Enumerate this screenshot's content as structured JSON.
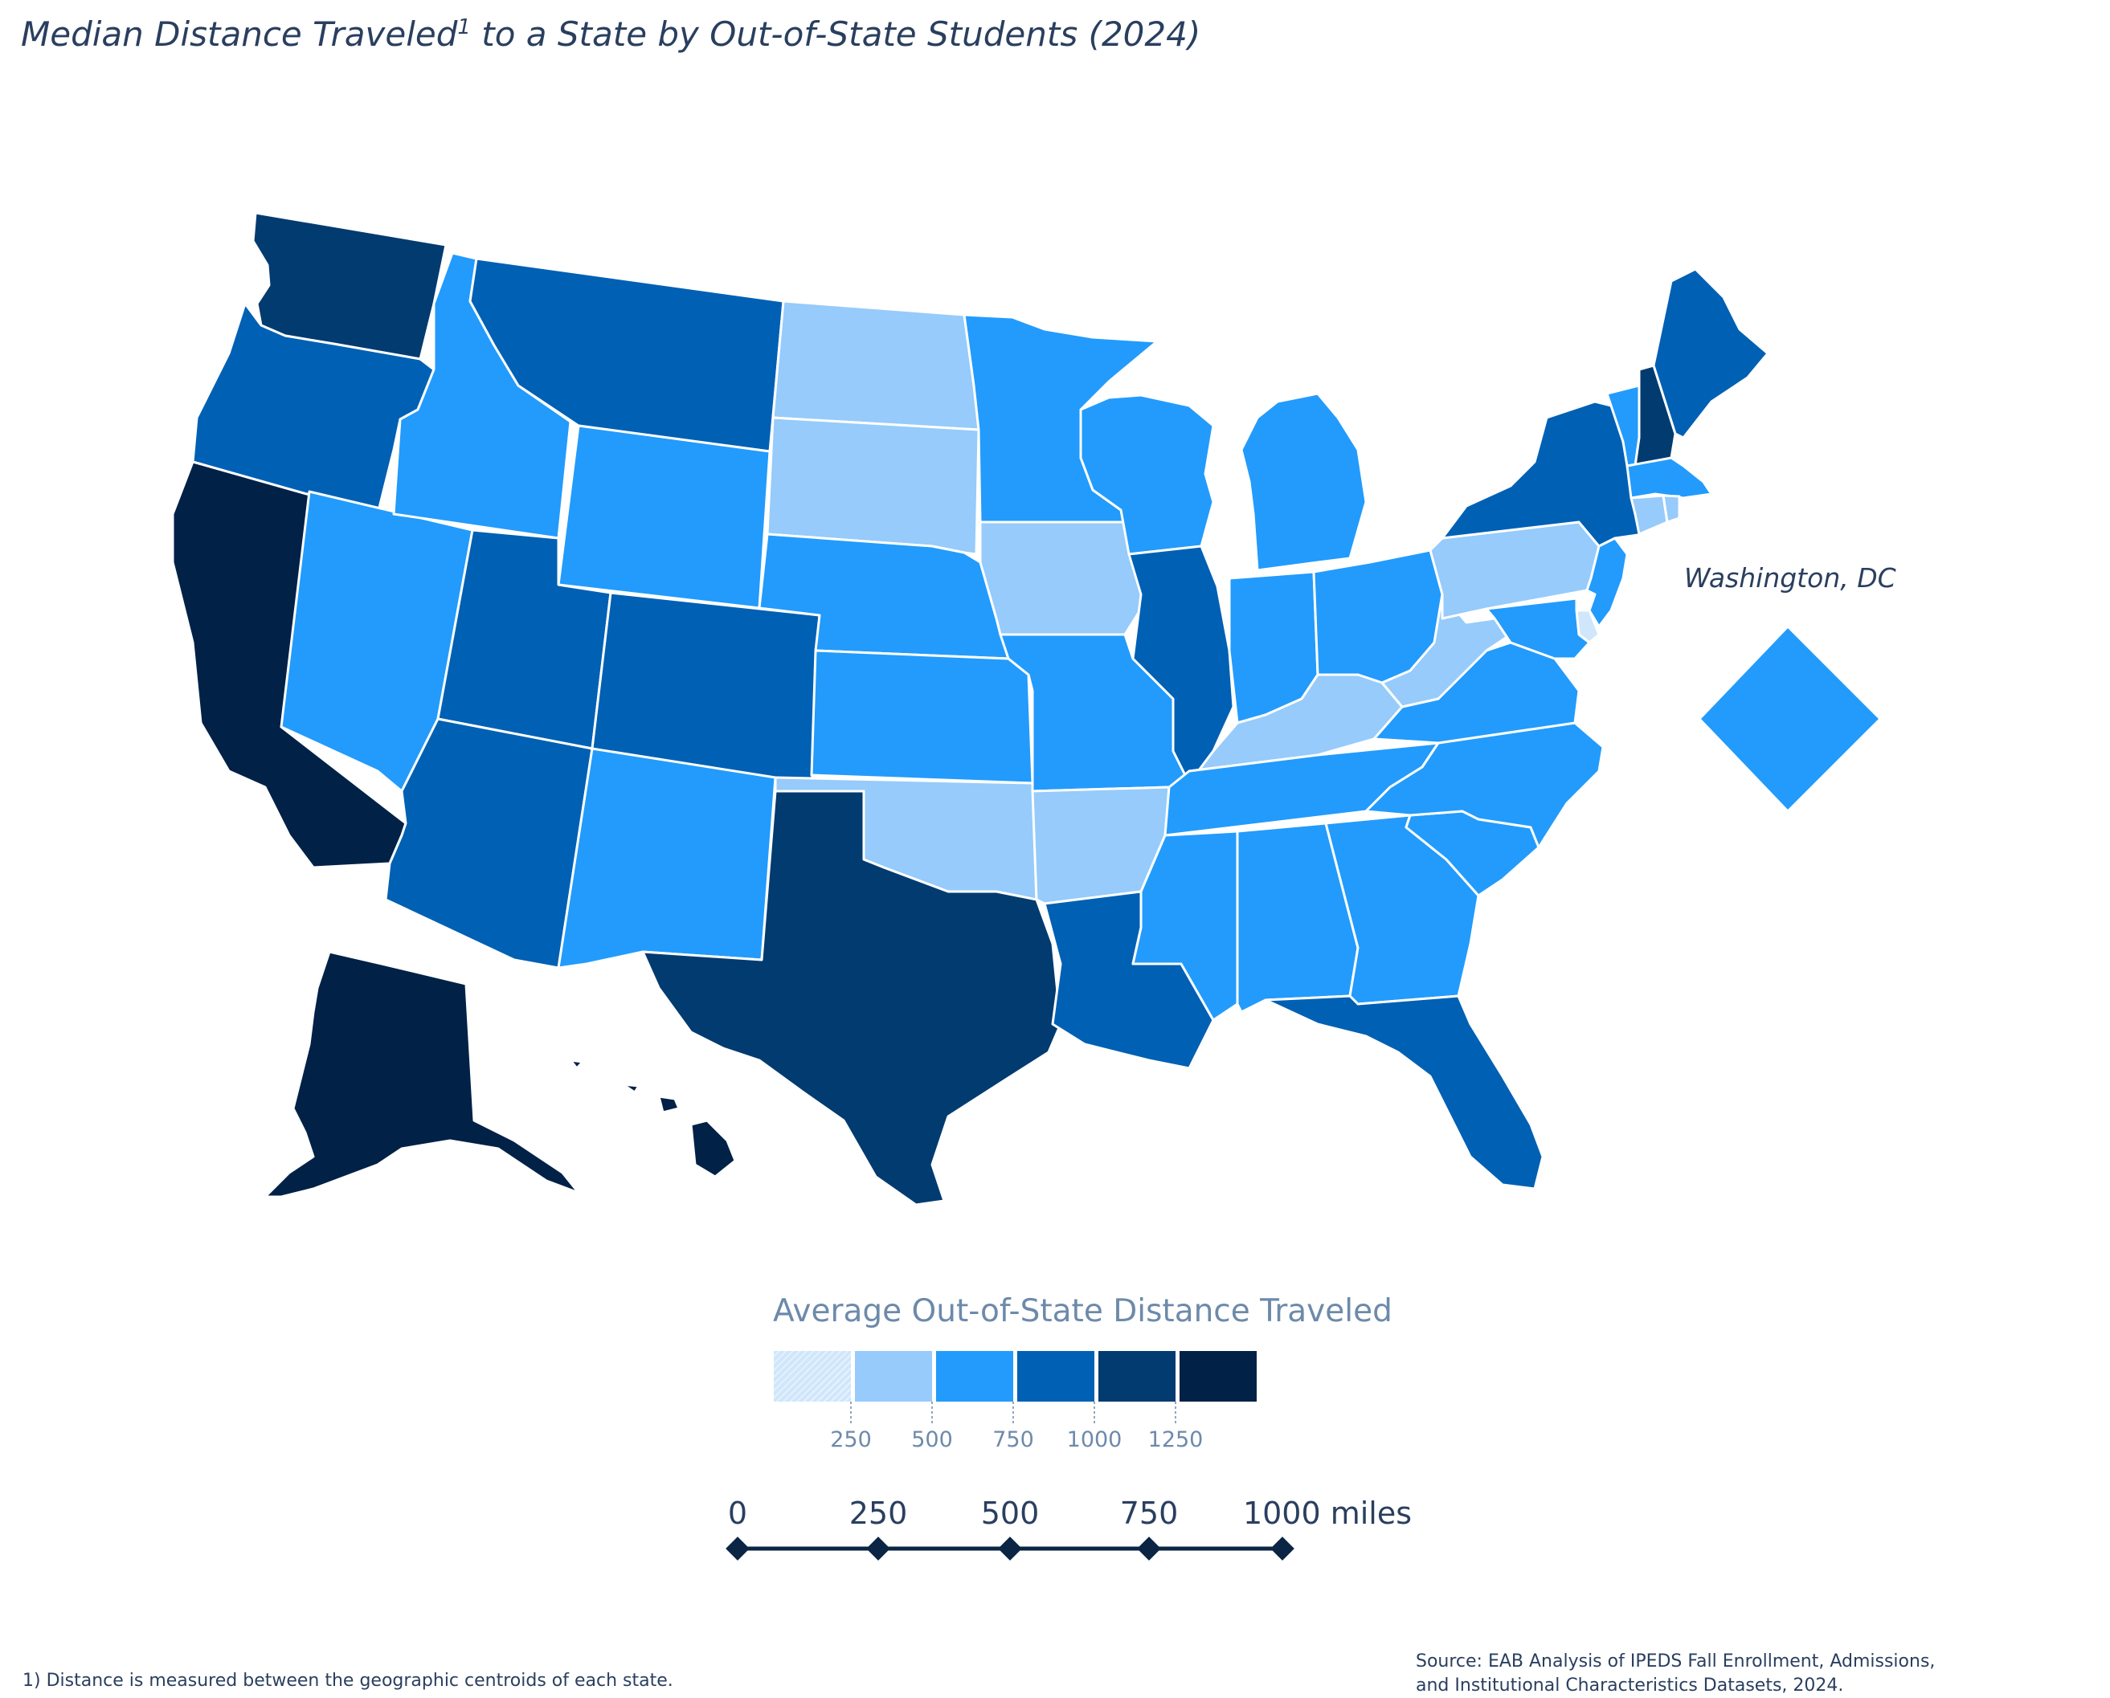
{
  "title": "Median Distance Traveled",
  "title_sup": "1",
  "title_rest": " to a State by Out-of-State Students (2024)",
  "dc_label": "Washington, DC",
  "legend": {
    "title": "Average Out-of-State Distance Traveled",
    "bins": [
      {
        "color": "#cfe6fb",
        "pattern": true
      },
      {
        "color": "#96cbfb"
      },
      {
        "color": "#229bfc"
      },
      {
        "color": "#0060b4"
      },
      {
        "color": "#023b70"
      },
      {
        "color": "#012147"
      }
    ],
    "ticks": [
      "250",
      "500",
      "750",
      "1000",
      "1250"
    ]
  },
  "scale_bar": {
    "labels": [
      "0",
      "250",
      "500",
      "750",
      "1000 miles"
    ]
  },
  "footnote": "1)  Distance is measured between the geographic centroids of each state.",
  "source": [
    "Source: EAB Analysis of IPEDS Fall Enrollment, Admissions,",
    "and Institutional Characteristics Datasets, 2024."
  ],
  "colors": {
    "c1": "#cfe6fb",
    "c2": "#96cbfb",
    "c3": "#229bfc",
    "c4": "#0060b4",
    "c5": "#023b70",
    "c6": "#012147"
  },
  "states": {
    "WA": "c5",
    "OR": "c4",
    "CA": "c6",
    "NV": "c3",
    "ID": "c3",
    "MT": "c4",
    "WY": "c3",
    "UT": "c4",
    "AZ": "c4",
    "CO": "c4",
    "NM": "c3",
    "ND": "c2",
    "SD": "c2",
    "NE": "c3",
    "KS": "c3",
    "OK": "c2",
    "TX": "c5",
    "MN": "c3",
    "IA": "c2",
    "MO": "c3",
    "AR": "c2",
    "LA": "c4",
    "WI": "c3",
    "IL": "c4",
    "MI": "c3",
    "IN": "c3",
    "OH": "c3",
    "KY": "c2",
    "TN": "c3",
    "MS": "c3",
    "AL": "c3",
    "GA": "c3",
    "FL": "c4",
    "SC": "c3",
    "NC": "c3",
    "VA": "c3",
    "WV": "c2",
    "PA": "c2",
    "NY": "c4",
    "VT": "c3",
    "NH": "c5",
    "ME": "c4",
    "MA": "c3",
    "CT": "c2",
    "RI": "c2",
    "NJ": "c3",
    "DE": "c1",
    "MD": "c3",
    "AK": "c6",
    "HI": "c6",
    "DC": "c3"
  }
}
